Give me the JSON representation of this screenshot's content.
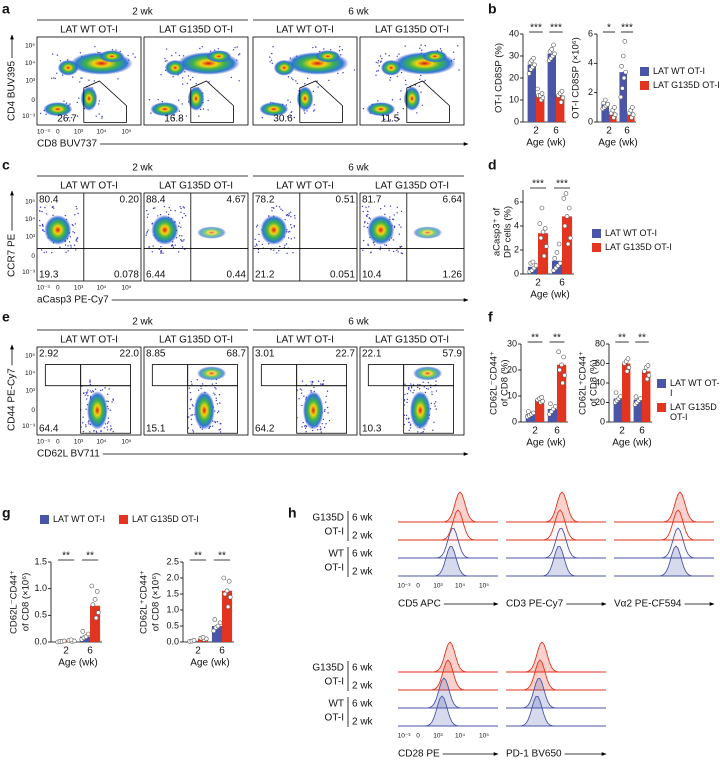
{
  "letters": [
    "a",
    "b",
    "c",
    "d",
    "e",
    "f",
    "g",
    "h"
  ],
  "flow": [
    {
      "groups": [
        "2 wk",
        "6 wk"
      ],
      "titles": [
        "LAT WT OT-I",
        "LAT G135D OT-I",
        "LAT WT OT-I",
        "LAT G135D OT-I"
      ],
      "ylabel": "CD4 BUV395",
      "xlabel": "CD8 BUV737",
      "yticks": [
        "10⁵",
        "10⁴",
        "10³",
        "0",
        "10⁻³"
      ],
      "xticks": [
        "10⁻³",
        "0",
        "10³",
        "10⁴",
        "10⁵"
      ],
      "gates": [
        [
          "26.7"
        ],
        [
          "16.8"
        ],
        [
          "30.6"
        ],
        [
          "11.5"
        ]
      ]
    },
    {
      "groups": [
        "2 wk",
        "6 wk"
      ],
      "titles": [
        "LAT WT OT-I",
        "LAT G135D OT-I",
        "LAT WT OT-I",
        "LAT G135D OT-I"
      ],
      "ylabel": "CCR7 PE",
      "xlabel": "aCasp3 PE-Cy7",
      "yticks": [
        "10⁵",
        "10⁴",
        "10³",
        "0",
        "10⁻³"
      ],
      "xticks": [
        "10⁻³",
        "0",
        "10³",
        "10⁴",
        "10⁵"
      ],
      "gates": [
        [
          "80.4",
          "0.20",
          "19.3",
          "0.078"
        ],
        [
          "88.4",
          "4.67",
          "6.44",
          "0.44"
        ],
        [
          "78.2",
          "0.51",
          "21.2",
          "0.051"
        ],
        [
          "81.7",
          "6.64",
          "10.4",
          "1.26"
        ]
      ]
    },
    {
      "groups": [
        "2 wk",
        "6 wk"
      ],
      "titles": [
        "LAT WT OT-I",
        "LAT G135D OT-I",
        "LAT WT OT-I",
        "LAT G135D OT-I"
      ],
      "ylabel": "CD44 PE-Cy7",
      "xlabel": "CD62L BV711",
      "yticks": [
        "10⁵",
        "10⁴",
        "10³",
        "0",
        "10⁻³"
      ],
      "xticks": [
        "10⁻³",
        "0",
        "10³",
        "10⁴",
        "10⁵"
      ],
      "gates": [
        [
          "2.92",
          "22.0",
          "64.4"
        ],
        [
          "8.85",
          "68.7",
          "15.1"
        ],
        [
          "3.01",
          "22.7",
          "64.2"
        ],
        [
          "22.1",
          "57.9",
          "10.3"
        ]
      ]
    }
  ],
  "chart_data": [
    {
      "type": "bar",
      "ylabel_lines": [
        "OT-I CD8SP (%)"
      ],
      "xlabel": "Age (wk)",
      "categories": [
        "2",
        "6"
      ],
      "ylim": [
        0,
        40
      ],
      "yticks": [
        0,
        10,
        20,
        30,
        40
      ],
      "significance": [
        "***",
        "***"
      ],
      "series": [
        {
          "color": "#4b55a8",
          "values": [
            26,
            31
          ],
          "points": [
            [
              22,
              24,
              25,
              26,
              27,
              28,
              29
            ],
            [
              28,
              29,
              30,
              31,
              32,
              33,
              35
            ]
          ]
        },
        {
          "color": "#e2341f",
          "values": [
            12,
            12
          ],
          "points": [
            [
              10,
              11,
              12,
              12,
              13,
              15
            ],
            [
              9,
              11,
              12,
              13,
              14
            ]
          ]
        }
      ]
    },
    {
      "type": "bar",
      "ylabel_lines": [
        "OT-I CD8SP (×10⁶)"
      ],
      "xlabel": "Age (wk)",
      "categories": [
        "2",
        "6"
      ],
      "ylim": [
        0,
        6
      ],
      "yticks": [
        0,
        2,
        4,
        6
      ],
      "significance": [
        "*",
        "***"
      ],
      "legend": "right",
      "series": [
        {
          "name": "LAT WT OT-I",
          "color": "#4b55a8",
          "values": [
            1.2,
            3.4
          ],
          "points": [
            [
              0.9,
              1.0,
              1.1,
              1.2,
              1.3,
              1.5
            ],
            [
              1.7,
              2.3,
              3.0,
              3.4,
              3.8,
              4.5,
              5.5
            ]
          ]
        },
        {
          "name": "LAT G135D OT-I",
          "color": "#e2341f",
          "values": [
            0.6,
            0.6
          ],
          "points": [
            [
              0.3,
              0.5,
              0.6,
              0.8,
              1.0
            ],
            [
              0.3,
              0.5,
              0.6,
              0.8,
              1.0
            ]
          ]
        }
      ]
    },
    {
      "type": "bar",
      "ylabel_lines": [
        "aCasp3⁺ of",
        "DP cells (%)"
      ],
      "xlabel": "Age (wk)",
      "categories": [
        "2",
        "6"
      ],
      "ylim": [
        0,
        7
      ],
      "yticks": [
        0,
        2,
        4,
        6
      ],
      "significance": [
        "***",
        "***"
      ],
      "legend": "right",
      "series": [
        {
          "name": "LAT WT OT-I",
          "color": "#4b55a8",
          "values": [
            0.6,
            1.1
          ],
          "points": [
            [
              0.2,
              0.3,
              0.5,
              0.7,
              0.9,
              1.0
            ],
            [
              0.3,
              0.5,
              0.7,
              0.9,
              1.3,
              1.8,
              2.5
            ]
          ]
        },
        {
          "name": "LAT G135D OT-I",
          "color": "#e2341f",
          "values": [
            3.4,
            4.8
          ],
          "points": [
            [
              1.5,
              2.3,
              3.0,
              3.5,
              3.8,
              4.2,
              5.5
            ],
            [
              2.5,
              3.0,
              4.0,
              4.8,
              5.5,
              6.3,
              6.7
            ]
          ]
        }
      ]
    },
    {
      "type": "bar",
      "ylabel_lines": [
        "CD62L⁻CD44⁺",
        "of CD8 (%)"
      ],
      "xlabel": "Age (wk)",
      "categories": [
        "2",
        "6"
      ],
      "ylim": [
        0,
        30
      ],
      "yticks": [
        0,
        10,
        20,
        30
      ],
      "significance": [
        "**",
        "**"
      ],
      "series": [
        {
          "color": "#4b55a8",
          "values": [
            3,
            5
          ],
          "points": [
            [
              2,
              2.5,
              3,
              3.5,
              4
            ],
            [
              3,
              4,
              5,
              6,
              7
            ]
          ]
        },
        {
          "color": "#e2341f",
          "values": [
            8.5,
            22
          ],
          "points": [
            [
              7.5,
              8,
              8.5,
              9,
              9.5
            ],
            [
              15,
              18,
              20,
              22,
              25,
              27
            ]
          ]
        }
      ]
    },
    {
      "type": "bar",
      "ylabel_lines": [
        "CD62L⁺CD44⁺",
        "of CD8 (%)"
      ],
      "xlabel": "Age (wk)",
      "categories": [
        "2",
        "6"
      ],
      "ylim": [
        0,
        80
      ],
      "yticks": [
        0,
        20,
        40,
        60,
        80
      ],
      "significance": [
        "**",
        "**"
      ],
      "legend": "right",
      "series": [
        {
          "name": "LAT WT OT-I",
          "color": "#4b55a8",
          "values": [
            24,
            23
          ],
          "points": [
            [
              20,
              22,
              24,
              26,
              30
            ],
            [
              18,
              20,
              22,
              24,
              26
            ]
          ]
        },
        {
          "name": "LAT G135D OT-I",
          "color": "#e2341f",
          "values": [
            60,
            52
          ],
          "points": [
            [
              52,
              56,
              60,
              62,
              65
            ],
            [
              44,
              48,
              52,
              56,
              58
            ]
          ]
        }
      ]
    },
    {
      "type": "bar",
      "ylabel_lines": [
        "CD62L⁻CD44⁺",
        "of CD8 (×10⁶)"
      ],
      "xlabel": "Age (wk)",
      "categories": [
        "2",
        "6"
      ],
      "ylim": [
        0,
        1.5
      ],
      "yticks": [
        {
          "value": 0,
          "label": "0.0"
        },
        0.5,
        {
          "value": 1,
          "label": "1.0"
        },
        1.5
      ],
      "significance": [
        "**",
        "**"
      ],
      "legend": "top",
      "series": [
        {
          "name": "LAT WT OT-I",
          "color": "#4b55a8",
          "values": [
            0.01,
            0.1
          ],
          "points": [
            [
              0.0,
              0.01,
              0.01,
              0.02
            ],
            [
              0.05,
              0.08,
              0.1,
              0.15,
              0.2
            ]
          ]
        },
        {
          "name": "LAT G135D OT-I",
          "color": "#e2341f",
          "values": [
            0.02,
            0.68
          ],
          "points": [
            [
              0.01,
              0.02,
              0.03,
              0.04
            ],
            [
              0.45,
              0.55,
              0.7,
              0.8,
              0.95,
              1.05
            ]
          ]
        }
      ]
    },
    {
      "type": "bar",
      "ylabel_lines": [
        "CD62L⁺CD44⁺",
        "of CD8 (×10⁶)"
      ],
      "xlabel": "Age (wk)",
      "categories": [
        "2",
        "6"
      ],
      "ylim": [
        0,
        2.5
      ],
      "yticks": [
        {
          "value": 0,
          "label": "0.0"
        },
        0.5,
        {
          "value": 1,
          "label": "1.0"
        },
        1.5,
        {
          "value": 2,
          "label": "2.0"
        },
        2.5
      ],
      "significance": [
        "**",
        "**"
      ],
      "series": [
        {
          "color": "#4b55a8",
          "values": [
            0.03,
            0.5
          ],
          "points": [
            [
              0.02,
              0.03,
              0.05
            ],
            [
              0.35,
              0.45,
              0.5,
              0.6,
              0.7
            ]
          ]
        },
        {
          "color": "#e2341f",
          "values": [
            0.1,
            1.6
          ],
          "points": [
            [
              0.08,
              0.1,
              0.12,
              0.15
            ],
            [
              1.1,
              1.4,
              1.5,
              1.6,
              1.9,
              2.0
            ]
          ]
        }
      ]
    }
  ],
  "h": {
    "groups": [
      {
        "lines": [
          "G135D",
          "OT-I"
        ],
        "weeks": [
          "6 wk",
          "2 wk"
        ]
      },
      {
        "lines": [
          "WT",
          "OT-I"
        ],
        "weeks": [
          "6 wk",
          "2 wk"
        ]
      }
    ],
    "rows": [
      {
        "markers": [
          "CD5 APC",
          "CD3 PE-Cy7",
          "Vα2 PE-CF594"
        ]
      },
      {
        "markers": [
          "CD28 PE",
          "PD-1 BV650"
        ]
      }
    ],
    "xticks": [
      "10⁻³",
      "0",
      "10³",
      "10⁴",
      "10⁵"
    ]
  }
}
